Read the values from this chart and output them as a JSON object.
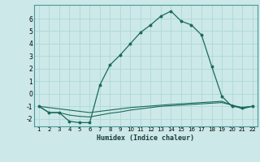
{
  "xlabel": "Humidex (Indice chaleur)",
  "bg_color": "#cce8e8",
  "grid_color": "#add8d8",
  "line_color": "#1a6a5a",
  "xlim": [
    0.5,
    22.5
  ],
  "ylim": [
    -2.6,
    7.1
  ],
  "yticks": [
    -2,
    -1,
    0,
    1,
    2,
    3,
    4,
    5,
    6
  ],
  "xticks": [
    1,
    2,
    3,
    4,
    5,
    6,
    7,
    8,
    9,
    10,
    11,
    12,
    13,
    14,
    15,
    16,
    17,
    18,
    19,
    20,
    21,
    22
  ],
  "line1_x": [
    1,
    2,
    3,
    4,
    5,
    6,
    7,
    8,
    9,
    10,
    11,
    12,
    13,
    14,
    15,
    16,
    17,
    18,
    19,
    20,
    21,
    22
  ],
  "line1_y": [
    -1.0,
    -1.5,
    -1.5,
    -2.2,
    -2.3,
    -2.3,
    0.7,
    2.3,
    3.1,
    4.0,
    4.9,
    5.5,
    6.2,
    6.6,
    5.8,
    5.5,
    4.7,
    2.2,
    -0.2,
    -1.0,
    -1.1,
    -1.0
  ],
  "line2_x": [
    1,
    6,
    10,
    14,
    18,
    19,
    20,
    21,
    22
  ],
  "line2_y": [
    -1.0,
    -1.5,
    -1.1,
    -0.85,
    -0.65,
    -0.6,
    -0.9,
    -1.1,
    -1.0
  ],
  "line3_x": [
    1,
    2,
    3,
    4,
    5,
    6,
    7,
    8,
    9,
    10,
    11,
    12,
    13,
    14,
    15,
    16,
    17,
    18,
    19,
    20,
    21,
    22
  ],
  "line3_y": [
    -1.0,
    -1.5,
    -1.5,
    -1.7,
    -1.8,
    -1.85,
    -1.7,
    -1.55,
    -1.45,
    -1.3,
    -1.2,
    -1.1,
    -1.0,
    -0.95,
    -0.9,
    -0.85,
    -0.8,
    -0.75,
    -0.7,
    -0.9,
    -1.2,
    -1.0
  ]
}
